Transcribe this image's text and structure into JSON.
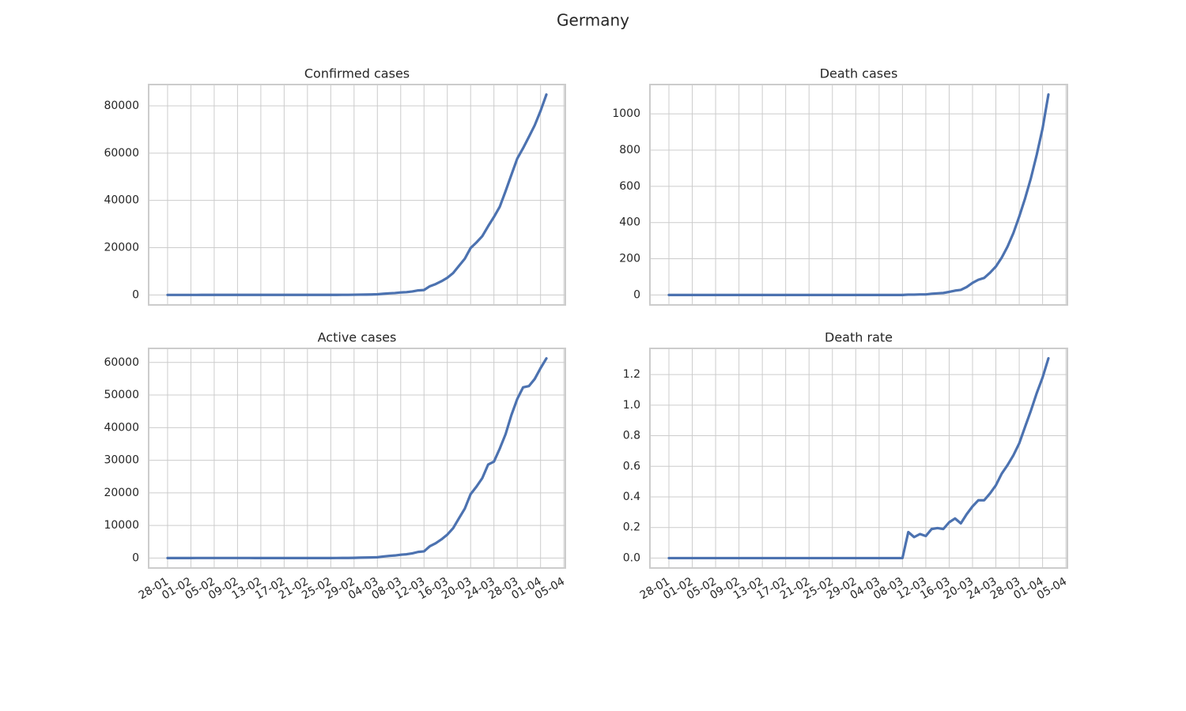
{
  "title": "Germany",
  "chart_data": [
    {
      "type": "line",
      "title": "Confirmed cases",
      "color": "#4c72b0",
      "grid": true,
      "x": [
        "28-01",
        "29-01",
        "30-01",
        "31-01",
        "01-02",
        "02-02",
        "03-02",
        "04-02",
        "05-02",
        "06-02",
        "07-02",
        "08-02",
        "09-02",
        "10-02",
        "11-02",
        "12-02",
        "13-02",
        "14-02",
        "15-02",
        "16-02",
        "17-02",
        "18-02",
        "19-02",
        "20-02",
        "21-02",
        "22-02",
        "23-02",
        "24-02",
        "25-02",
        "26-02",
        "27-02",
        "28-02",
        "29-02",
        "01-03",
        "02-03",
        "03-03",
        "04-03",
        "05-03",
        "06-03",
        "07-03",
        "08-03",
        "09-03",
        "10-03",
        "11-03",
        "12-03",
        "13-03",
        "14-03",
        "15-03",
        "16-03",
        "17-03",
        "18-03",
        "19-03",
        "20-03",
        "21-03",
        "22-03",
        "23-03",
        "24-03",
        "25-03",
        "26-03",
        "27-03",
        "28-03",
        "29-03",
        "30-03",
        "31-03",
        "01-04",
        "02-04"
      ],
      "values": [
        4,
        4,
        4,
        5,
        8,
        10,
        12,
        12,
        12,
        12,
        13,
        13,
        14,
        14,
        16,
        16,
        16,
        16,
        16,
        16,
        16,
        16,
        16,
        16,
        16,
        16,
        16,
        16,
        17,
        27,
        46,
        48,
        79,
        130,
        159,
        196,
        262,
        482,
        670,
        799,
        1040,
        1176,
        1457,
        1908,
        2078,
        3675,
        4585,
        5795,
        7272,
        9257,
        12327,
        15320,
        19848,
        22213,
        24873,
        29056,
        32986,
        37323,
        43938,
        50871,
        57695,
        62095,
        66885,
        71808,
        77872,
        84794
      ],
      "ylim": [
        -4240,
        89040
      ],
      "yticks": [
        0,
        20000,
        40000,
        60000,
        80000
      ]
    },
    {
      "type": "line",
      "title": "Death cases",
      "color": "#4c72b0",
      "grid": true,
      "x": [
        "28-01",
        "29-01",
        "30-01",
        "31-01",
        "01-02",
        "02-02",
        "03-02",
        "04-02",
        "05-02",
        "06-02",
        "07-02",
        "08-02",
        "09-02",
        "10-02",
        "11-02",
        "12-02",
        "13-02",
        "14-02",
        "15-02",
        "16-02",
        "17-02",
        "18-02",
        "19-02",
        "20-02",
        "21-02",
        "22-02",
        "23-02",
        "24-02",
        "25-02",
        "26-02",
        "27-02",
        "28-02",
        "29-02",
        "01-03",
        "02-03",
        "03-03",
        "04-03",
        "05-03",
        "06-03",
        "07-03",
        "08-03",
        "09-03",
        "10-03",
        "11-03",
        "12-03",
        "13-03",
        "14-03",
        "15-03",
        "16-03",
        "17-03",
        "18-03",
        "19-03",
        "20-03",
        "21-03",
        "22-03",
        "23-03",
        "24-03",
        "25-03",
        "26-03",
        "27-03",
        "28-03",
        "29-03",
        "30-03",
        "31-03",
        "01-04",
        "02-04"
      ],
      "values": [
        0,
        0,
        0,
        0,
        0,
        0,
        0,
        0,
        0,
        0,
        0,
        0,
        0,
        0,
        0,
        0,
        0,
        0,
        0,
        0,
        0,
        0,
        0,
        0,
        0,
        0,
        0,
        0,
        0,
        0,
        0,
        0,
        0,
        0,
        0,
        0,
        0,
        0,
        0,
        0,
        0,
        2,
        2,
        3,
        3,
        7,
        9,
        11,
        17,
        24,
        28,
        44,
        67,
        84,
        94,
        123,
        157,
        206,
        267,
        342,
        433,
        533,
        645,
        775,
        920,
        1107
      ],
      "ylim": [
        -55,
        1162
      ],
      "yticks": [
        0,
        200,
        400,
        600,
        800,
        1000
      ]
    },
    {
      "type": "line",
      "title": "Active cases",
      "color": "#4c72b0",
      "grid": true,
      "x": [
        "28-01",
        "29-01",
        "30-01",
        "31-01",
        "01-02",
        "02-02",
        "03-02",
        "04-02",
        "05-02",
        "06-02",
        "07-02",
        "08-02",
        "09-02",
        "10-02",
        "11-02",
        "12-02",
        "13-02",
        "14-02",
        "15-02",
        "16-02",
        "17-02",
        "18-02",
        "19-02",
        "20-02",
        "21-02",
        "22-02",
        "23-02",
        "24-02",
        "25-02",
        "26-02",
        "27-02",
        "28-02",
        "29-02",
        "01-03",
        "02-03",
        "03-03",
        "04-03",
        "05-03",
        "06-03",
        "07-03",
        "08-03",
        "09-03",
        "10-03",
        "11-03",
        "12-03",
        "13-03",
        "14-03",
        "15-03",
        "16-03",
        "17-03",
        "18-03",
        "19-03",
        "20-03",
        "21-03",
        "22-03",
        "23-03",
        "24-03",
        "25-03",
        "26-03",
        "27-03",
        "28-03",
        "29-03",
        "30-03",
        "31-03",
        "01-04",
        "02-04"
      ],
      "values": [
        4,
        4,
        4,
        5,
        8,
        10,
        12,
        12,
        12,
        12,
        13,
        13,
        14,
        14,
        16,
        1,
        1,
        1,
        1,
        1,
        1,
        2,
        2,
        2,
        2,
        2,
        2,
        2,
        2,
        11,
        30,
        32,
        63,
        114,
        143,
        180,
        246,
        466,
        653,
        781,
        1022,
        1156,
        1437,
        1880,
        2050,
        3622,
        4530,
        5738,
        7188,
        9166,
        12194,
        15163,
        19601,
        21896,
        24513,
        28667,
        29586,
        33570,
        37998,
        43871,
        48781,
        52351,
        52740,
        54933,
        58252,
        61247
      ],
      "ylim": [
        -3060,
        64310
      ],
      "yticks": [
        0,
        10000,
        20000,
        30000,
        40000,
        50000,
        60000
      ],
      "xticks": [
        "28-01",
        "01-02",
        "05-02",
        "09-02",
        "13-02",
        "17-02",
        "21-02",
        "25-02",
        "29-02",
        "04-03",
        "08-03",
        "12-03",
        "16-03",
        "20-03",
        "24-03",
        "28-03",
        "01-04",
        "05-04"
      ]
    },
    {
      "type": "line",
      "title": "Death rate",
      "color": "#4c72b0",
      "grid": true,
      "x": [
        "28-01",
        "29-01",
        "30-01",
        "31-01",
        "01-02",
        "02-02",
        "03-02",
        "04-02",
        "05-02",
        "06-02",
        "07-02",
        "08-02",
        "09-02",
        "10-02",
        "11-02",
        "12-02",
        "13-02",
        "14-02",
        "15-02",
        "16-02",
        "17-02",
        "18-02",
        "19-02",
        "20-02",
        "21-02",
        "22-02",
        "23-02",
        "24-02",
        "25-02",
        "26-02",
        "27-02",
        "28-02",
        "29-02",
        "01-03",
        "02-03",
        "03-03",
        "04-03",
        "05-03",
        "06-03",
        "07-03",
        "08-03",
        "09-03",
        "10-03",
        "11-03",
        "12-03",
        "13-03",
        "14-03",
        "15-03",
        "16-03",
        "17-03",
        "18-03",
        "19-03",
        "20-03",
        "21-03",
        "22-03",
        "23-03",
        "24-03",
        "25-03",
        "26-03",
        "27-03",
        "28-03",
        "29-03",
        "30-03",
        "31-03",
        "01-04",
        "02-04"
      ],
      "values": [
        0,
        0,
        0,
        0,
        0,
        0,
        0,
        0,
        0,
        0,
        0,
        0,
        0,
        0,
        0,
        0,
        0,
        0,
        0,
        0,
        0,
        0,
        0,
        0,
        0,
        0,
        0,
        0,
        0,
        0,
        0,
        0,
        0,
        0,
        0,
        0,
        0,
        0,
        0,
        0,
        0,
        0.17,
        0.137,
        0.157,
        0.144,
        0.19,
        0.196,
        0.19,
        0.234,
        0.259,
        0.227,
        0.287,
        0.338,
        0.378,
        0.378,
        0.423,
        0.476,
        0.552,
        0.608,
        0.672,
        0.75,
        0.858,
        0.964,
        1.079,
        1.181,
        1.306
      ],
      "ylim": [
        -0.065,
        1.371
      ],
      "yticks": [
        {
          "value": 0,
          "label": "0.0"
        },
        0.2,
        0.4,
        0.6,
        0.8,
        {
          "value": 1,
          "label": "1.0"
        },
        1.2
      ],
      "xticks": [
        "28-01",
        "01-02",
        "05-02",
        "09-02",
        "13-02",
        "17-02",
        "21-02",
        "25-02",
        "29-02",
        "04-03",
        "08-03",
        "12-03",
        "16-03",
        "20-03",
        "24-03",
        "28-03",
        "01-04",
        "05-04"
      ]
    }
  ]
}
